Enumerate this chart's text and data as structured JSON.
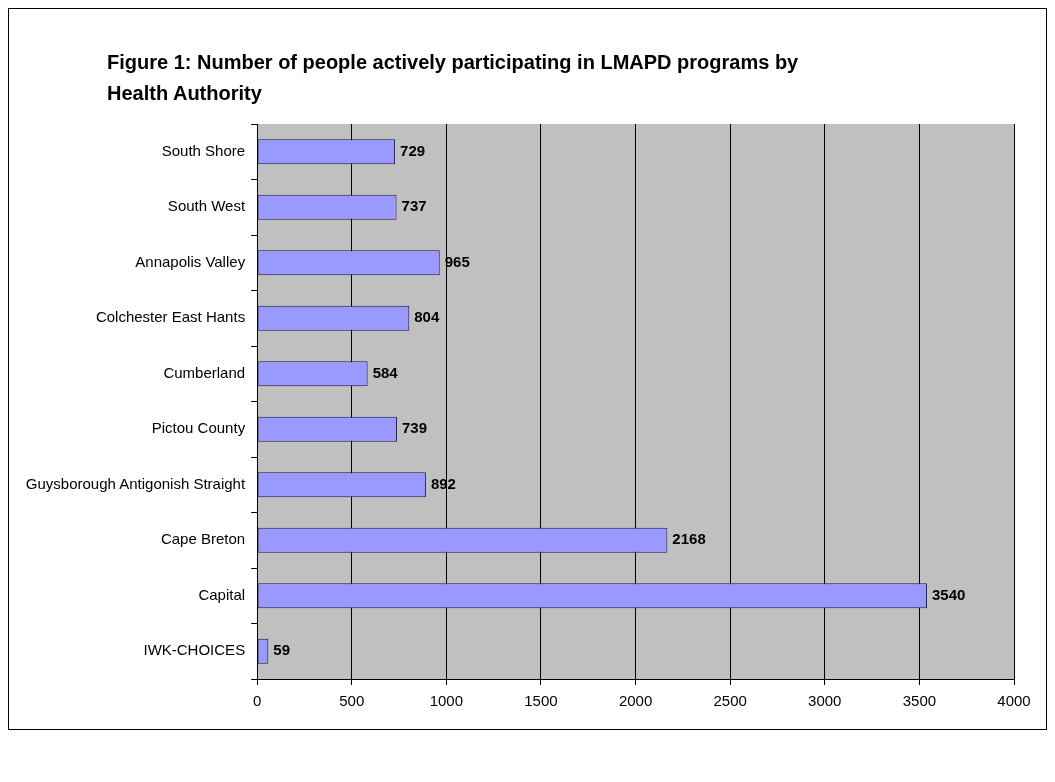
{
  "chart_data": {
    "type": "bar",
    "orientation": "horizontal",
    "title": "Figure 1: Number of people actively participating in LMAPD programs by Health Authority",
    "categories": [
      "South Shore",
      "South West",
      "Annapolis Valley",
      "Colchester East Hants",
      "Cumberland",
      "Pictou County",
      "Guysborough Antigonish Straight",
      "Cape Breton",
      "Capital",
      "IWK-CHOICES"
    ],
    "values": [
      729,
      737,
      965,
      804,
      584,
      739,
      892,
      2168,
      3540,
      59
    ],
    "color": "#9999ff",
    "xlim": [
      0,
      4000
    ],
    "xticks": [
      0,
      500,
      1000,
      1500,
      2000,
      2500,
      3000,
      3500,
      4000
    ],
    "grid": "x",
    "data_labels": true,
    "legend": false
  }
}
